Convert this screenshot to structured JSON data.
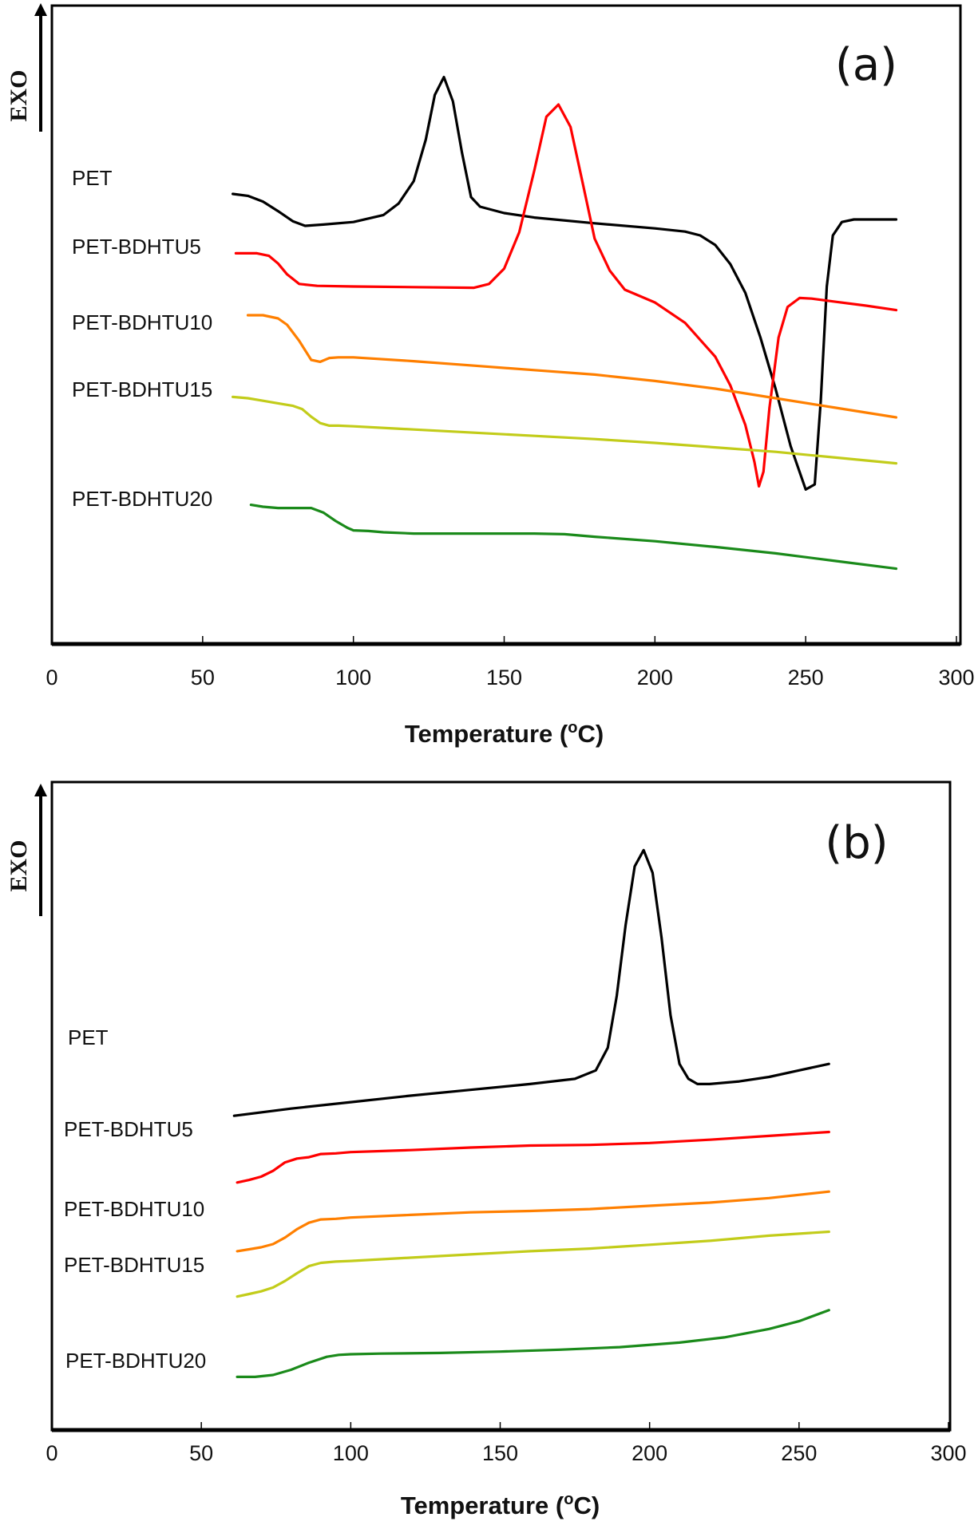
{
  "chart_data": [
    {
      "type": "line",
      "panel": "(a)",
      "title": "",
      "xlabel": "Temperature (°C)",
      "xlabel_main": "Temperature (",
      "xlabel_sup": "o",
      "xlabel_end": "C)",
      "ylabel": "EXO",
      "xlim": [
        0,
        300
      ],
      "xticks": [
        0,
        50,
        100,
        150,
        200,
        250,
        300
      ],
      "ylim": [
        0,
        100
      ],
      "grid": false,
      "y_axis_note": "arbitrary units, exotherm up",
      "series": [
        {
          "name": "PET",
          "color": "#000000",
          "x": [
            60,
            65,
            70,
            75,
            80,
            84,
            90,
            100,
            110,
            115,
            120,
            124,
            127,
            130,
            133,
            136,
            139,
            142,
            146,
            150,
            160,
            180,
            200,
            210,
            215,
            220,
            225,
            230,
            235,
            240,
            245,
            250,
            253,
            255,
            257,
            259,
            262,
            266,
            280
          ],
          "y": [
            70.5,
            70.2,
            69.3,
            67.8,
            66.2,
            65.5,
            65.7,
            66.1,
            67.2,
            69,
            72.5,
            79,
            86,
            88.8,
            85,
            77,
            70,
            68.5,
            68,
            67.5,
            66.8,
            65.9,
            65.1,
            64.6,
            64,
            62.5,
            59.5,
            55,
            48,
            40,
            31,
            24.2,
            25,
            38,
            56,
            64,
            66.1,
            66.5,
            66.5
          ]
        },
        {
          "name": "PET-BDHTU5",
          "color": "#ff0000",
          "x": [
            61,
            68,
            72,
            75,
            78,
            82,
            88,
            100,
            120,
            140,
            145,
            150,
            155,
            160,
            164,
            168,
            172,
            176,
            180,
            185,
            190,
            200,
            210,
            220,
            225,
            230,
            233,
            234.5,
            236,
            238,
            241,
            244,
            248,
            252,
            260,
            270,
            280
          ],
          "y": [
            61.2,
            61.2,
            60.8,
            59.6,
            57.9,
            56.4,
            56.1,
            56,
            55.9,
            55.8,
            56.4,
            58.8,
            64.5,
            74.2,
            82.6,
            84.5,
            81,
            72.3,
            63.5,
            58.5,
            55.5,
            53.5,
            50.3,
            45,
            40.5,
            34.3,
            28.5,
            24.7,
            27,
            37,
            48,
            52.8,
            54.2,
            54.1,
            53.6,
            53,
            52.3
          ]
        },
        {
          "name": "PET-BDHTU10",
          "color": "#ff7f00",
          "x": [
            65,
            70,
            75,
            78,
            82,
            86,
            89,
            92,
            95,
            100,
            120,
            140,
            160,
            180,
            200,
            220,
            240,
            260,
            280
          ],
          "y": [
            51.5,
            51.5,
            51,
            50,
            47.5,
            44.5,
            44.2,
            44.8,
            44.9,
            44.9,
            44.3,
            43.6,
            42.9,
            42.2,
            41.2,
            40,
            38.5,
            37,
            35.5
          ]
        },
        {
          "name": "PET-BDHTU15",
          "color": "#c2cc1a",
          "x": [
            60,
            65,
            70,
            75,
            80,
            83,
            86,
            89,
            92,
            95,
            100,
            120,
            140,
            160,
            180,
            200,
            220,
            240,
            260,
            280
          ],
          "y": [
            38.7,
            38.5,
            38.1,
            37.7,
            37.3,
            36.8,
            35.6,
            34.6,
            34.2,
            34.2,
            34.1,
            33.6,
            33.1,
            32.6,
            32.1,
            31.5,
            30.8,
            30.1,
            29.2,
            28.3
          ]
        },
        {
          "name": "PET-BDHTU20",
          "color": "#1a8a1a",
          "x": [
            66,
            70,
            75,
            80,
            86,
            90,
            94,
            98,
            100,
            105,
            110,
            120,
            140,
            160,
            170,
            180,
            200,
            220,
            240,
            260,
            280
          ],
          "y": [
            21.8,
            21.5,
            21.3,
            21.3,
            21.3,
            20.6,
            19.3,
            18.2,
            17.8,
            17.7,
            17.5,
            17.3,
            17.3,
            17.3,
            17.2,
            16.8,
            16.1,
            15.2,
            14.2,
            13,
            11.8
          ]
        }
      ]
    },
    {
      "type": "line",
      "panel": "(b)",
      "title": "",
      "xlabel": "Temperature (°C)",
      "xlabel_main": "Temperature (",
      "xlabel_sup": "o",
      "xlabel_end": "C)",
      "ylabel": "EXO",
      "xlim": [
        0,
        300
      ],
      "xticks": [
        0,
        50,
        100,
        150,
        200,
        250,
        300
      ],
      "ylim": [
        0,
        100
      ],
      "grid": false,
      "y_axis_note": "arbitrary units, exotherm up",
      "series": [
        {
          "name": "PET",
          "color": "#000000",
          "x": [
            61,
            80,
            100,
            120,
            140,
            160,
            175,
            182,
            186,
            189,
            192,
            195,
            198,
            201,
            204,
            207,
            210,
            213,
            216,
            220,
            230,
            240,
            250,
            260
          ],
          "y": [
            48.5,
            49.6,
            50.6,
            51.6,
            52.5,
            53.4,
            54.2,
            55.5,
            59,
            67,
            78,
            87,
            89.5,
            86,
            76,
            64,
            56.5,
            54.2,
            53.4,
            53.4,
            53.8,
            54.5,
            55.5,
            56.5
          ]
        },
        {
          "name": "PET-BDHTU5",
          "color": "#ff0000",
          "x": [
            62,
            66,
            70,
            74,
            78,
            82,
            86,
            90,
            95,
            100,
            120,
            140,
            160,
            180,
            200,
            220,
            240,
            260
          ],
          "y": [
            38.2,
            38.6,
            39.1,
            40,
            41.3,
            41.9,
            42.1,
            42.6,
            42.7,
            42.9,
            43.2,
            43.6,
            43.9,
            44,
            44.3,
            44.8,
            45.4,
            46
          ]
        },
        {
          "name": "PET-BDHTU10",
          "color": "#ff7f00",
          "x": [
            62,
            66,
            70,
            74,
            78,
            82,
            86,
            90,
            95,
            100,
            120,
            140,
            160,
            180,
            200,
            220,
            240,
            260
          ],
          "y": [
            27.6,
            27.9,
            28.2,
            28.7,
            29.7,
            31,
            32,
            32.5,
            32.6,
            32.8,
            33.2,
            33.6,
            33.8,
            34.1,
            34.6,
            35.1,
            35.8,
            36.8
          ]
        },
        {
          "name": "PET-BDHTU15",
          "color": "#c2cc1a",
          "x": [
            62,
            66,
            70,
            74,
            78,
            82,
            86,
            90,
            95,
            100,
            120,
            140,
            160,
            180,
            200,
            220,
            240,
            260
          ],
          "y": [
            20.6,
            21,
            21.4,
            22,
            23,
            24.2,
            25.3,
            25.8,
            26,
            26.1,
            26.6,
            27.1,
            27.6,
            28,
            28.6,
            29.2,
            30,
            30.6
          ]
        },
        {
          "name": "PET-BDHTU20",
          "color": "#1a8a1a",
          "x": [
            62,
            68,
            74,
            80,
            86,
            92,
            96,
            100,
            110,
            130,
            150,
            170,
            190,
            210,
            225,
            240,
            250,
            260
          ],
          "y": [
            8.2,
            8.2,
            8.5,
            9.3,
            10.4,
            11.3,
            11.6,
            11.7,
            11.8,
            11.9,
            12.1,
            12.4,
            12.8,
            13.5,
            14.3,
            15.6,
            16.8,
            18.5
          ]
        }
      ]
    }
  ]
}
